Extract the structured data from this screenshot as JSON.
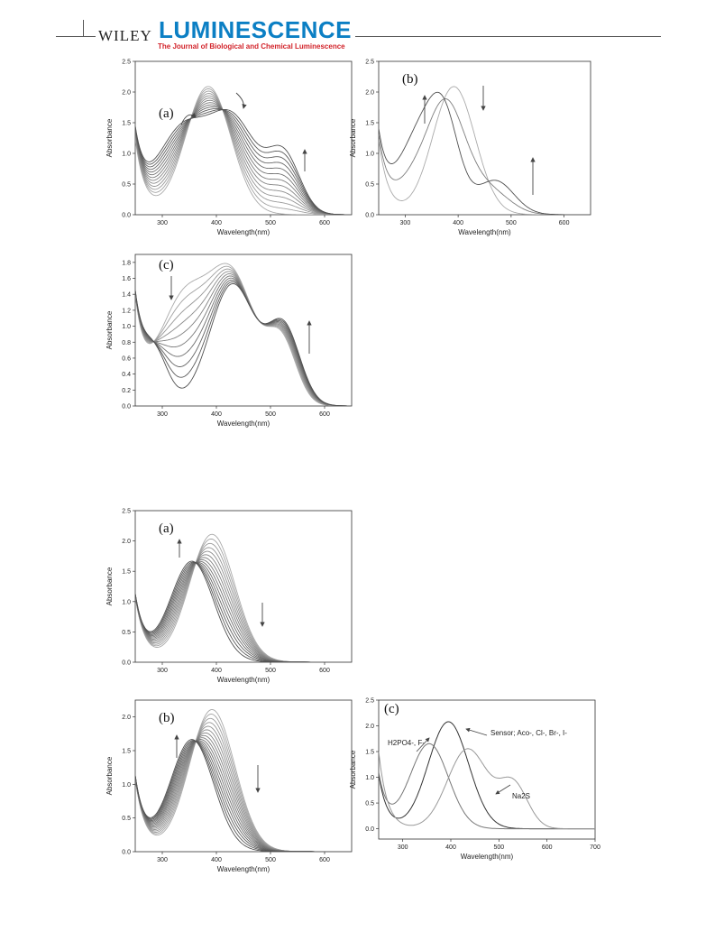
{
  "header": {
    "publisher": "WILEY",
    "journal": "LUMINESCENCE",
    "subtitle": "The Journal of Biological and Chemical Luminescence"
  },
  "chart_data": [
    {
      "id": "fig1a",
      "type": "line",
      "panel_label": "(a)",
      "xlabel": "Wavelength(nm)",
      "ylabel": "Absorbance",
      "xlim": [
        250,
        650
      ],
      "ylim": [
        0,
        2.5
      ],
      "xticks": [
        300,
        400,
        500,
        600
      ],
      "yticks": [
        0.0,
        0.5,
        1.0,
        1.5,
        2.0,
        2.5
      ],
      "family": {
        "initial_peaks": [
          [
            385,
            2.08,
            42
          ]
        ],
        "final_peaks": [
          [
            335,
            1.3,
            45
          ],
          [
            430,
            1.52,
            45
          ],
          [
            525,
            0.92,
            30
          ]
        ],
        "start_y": 1.2,
        "n_curves": 13
      }
    },
    {
      "id": "fig1b",
      "type": "line",
      "panel_label": "(b)",
      "xlabel": "Wavelength(nm)",
      "ylabel": "Absorbance",
      "xlim": [
        250,
        650
      ],
      "ylim": [
        0,
        2.5
      ],
      "xticks": [
        300,
        400,
        500,
        600
      ],
      "yticks": [
        0.0,
        0.5,
        1.0,
        1.5,
        2.0,
        2.5
      ],
      "family": {
        "initial_peaks": [
          [
            392,
            2.08,
            40
          ]
        ],
        "final_peaks": [
          [
            330,
            1.3,
            40
          ],
          [
            375,
            1.15,
            28
          ],
          [
            470,
            0.55,
            35
          ]
        ],
        "start_y": 1.2,
        "n_curves": 3
      }
    },
    {
      "id": "fig1c",
      "type": "line",
      "panel_label": "(c)",
      "xlabel": "Wavelength(nm)",
      "ylabel": "Absorbance",
      "xlim": [
        250,
        650
      ],
      "ylim": [
        0,
        1.9
      ],
      "xticks": [
        300,
        400,
        500,
        600
      ],
      "yticks": [
        0.0,
        0.2,
        0.4,
        0.6,
        0.8,
        1.0,
        1.2,
        1.4,
        1.6,
        1.8
      ],
      "family": {
        "initial_peaks": [
          [
            340,
            1.3,
            45
          ],
          [
            430,
            1.55,
            42
          ],
          [
            520,
            0.78,
            28
          ]
        ],
        "final_peaks": [
          [
            430,
            1.52,
            42
          ],
          [
            525,
            0.95,
            30
          ],
          [
            285,
            0.6,
            25
          ]
        ],
        "start_y": 1.2,
        "n_curves": 10
      }
    },
    {
      "id": "fig2a",
      "type": "line",
      "panel_label": "(a)",
      "xlabel": "Wavelength(nm)",
      "ylabel": "Absorbance",
      "xlim": [
        250,
        650
      ],
      "ylim": [
        0,
        2.5
      ],
      "xticks": [
        300,
        400,
        500,
        600
      ],
      "yticks": [
        0.0,
        0.5,
        1.0,
        1.5,
        2.0,
        2.5
      ],
      "family": {
        "initial_peaks": [
          [
            392,
            2.1,
            42
          ]
        ],
        "final_peaks": [
          [
            355,
            1.65,
            40
          ]
        ],
        "start_y": 1.05,
        "n_curves": 14
      }
    },
    {
      "id": "fig2b",
      "type": "line",
      "panel_label": "(b)",
      "xlabel": "Wavelength(nm)",
      "ylabel": "Absorbance",
      "xlim": [
        250,
        650
      ],
      "ylim": [
        0,
        2.25
      ],
      "xticks": [
        300,
        400,
        500,
        600
      ],
      "yticks": [
        0.0,
        0.5,
        1.0,
        1.5,
        2.0
      ],
      "family": {
        "initial_peaks": [
          [
            392,
            2.1,
            42
          ]
        ],
        "final_peaks": [
          [
            355,
            1.65,
            40
          ]
        ],
        "start_y": 1.05,
        "n_curves": 16
      }
    },
    {
      "id": "fig2c",
      "type": "line",
      "panel_label": "(c)",
      "xlabel": "Wavelength(nm)",
      "ylabel": "Absorbance",
      "xlim": [
        250,
        700
      ],
      "ylim": [
        -0.2,
        2.5
      ],
      "xticks": [
        300,
        400,
        500,
        600,
        700
      ],
      "yticks": [
        0.0,
        0.5,
        1.0,
        1.5,
        2.0,
        2.5
      ],
      "series": [
        {
          "name": "Sensor; Aco-, Cl-, Br-, I-",
          "peaks": [
            [
              395,
              2.08,
              42
            ]
          ],
          "start_y": 1.05
        },
        {
          "name": "H2PO4-, F-",
          "peaks": [
            [
              355,
              1.65,
              40
            ]
          ],
          "start_y": 1.05
        },
        {
          "name": "Na2S",
          "peaks": [
            [
              435,
              1.55,
              42
            ],
            [
              530,
              0.85,
              30
            ]
          ],
          "start_y": 1.5
        }
      ]
    }
  ]
}
